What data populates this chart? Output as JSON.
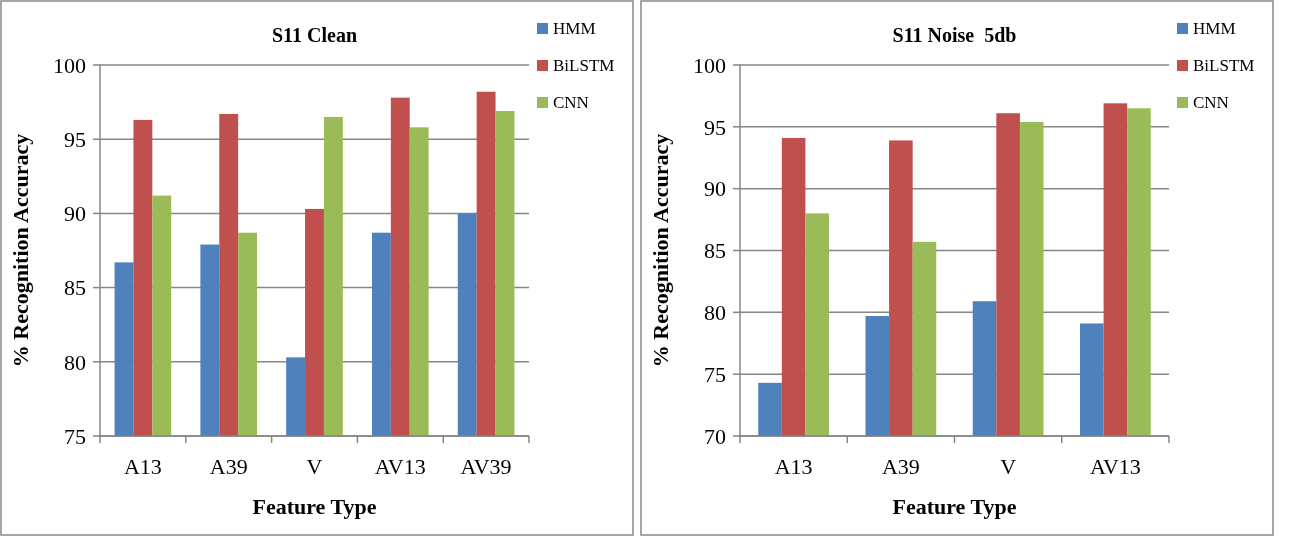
{
  "chart_data": [
    {
      "type": "bar",
      "title": "S11 Clean",
      "xlabel": "Feature Type",
      "ylabel": "% Recognition Accuracy",
      "categories": [
        "A13",
        "A39",
        "V",
        "AV13",
        "AV39"
      ],
      "series": [
        {
          "name": "HMM",
          "color": "#4f81bd",
          "values": [
            86.7,
            87.9,
            80.3,
            88.7,
            90.0
          ]
        },
        {
          "name": "BiLSTM",
          "color": "#c0504d",
          "values": [
            96.3,
            96.7,
            90.3,
            97.8,
            98.2
          ]
        },
        {
          "name": "CNN",
          "color": "#9bbb59",
          "values": [
            91.2,
            88.7,
            96.5,
            95.8,
            96.9
          ]
        }
      ],
      "ylim": [
        75,
        100
      ],
      "yticks": [
        75,
        80,
        85,
        90,
        95,
        100
      ],
      "grid": "y",
      "legend": "top right"
    },
    {
      "type": "bar",
      "title": "S11 Noise  5db",
      "xlabel": "Feature Type",
      "ylabel": "% Recognition Accuracy",
      "categories": [
        "A13",
        "A39",
        "V",
        "AV13"
      ],
      "series": [
        {
          "name": "HMM",
          "color": "#4f81bd",
          "values": [
            74.3,
            79.7,
            80.9,
            79.1
          ]
        },
        {
          "name": "BiLSTM",
          "color": "#c0504d",
          "values": [
            94.1,
            93.9,
            96.1,
            96.9
          ]
        },
        {
          "name": "CNN",
          "color": "#9bbb59",
          "values": [
            88.0,
            85.7,
            95.4,
            96.5
          ]
        }
      ],
      "ylim": [
        70,
        100
      ],
      "yticks": [
        70,
        75,
        80,
        85,
        90,
        95,
        100
      ],
      "grid": "y",
      "legend": "top right"
    }
  ]
}
